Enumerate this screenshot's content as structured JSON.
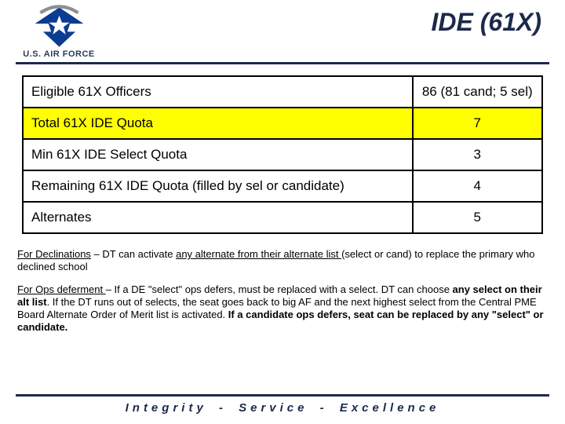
{
  "header": {
    "org_label": "U.S. AIR FORCE",
    "title": "IDE (61X)",
    "logo_colors": {
      "wing": "#0a3d91",
      "star": "#ffffff",
      "arc": "#8a8f99"
    }
  },
  "rule_color": "#1c2a4a",
  "table": {
    "rows": [
      {
        "label": "Eligible 61X Officers",
        "value": "86 (81 cand; 5 sel)",
        "highlight": false
      },
      {
        "label": "Total 61X IDE Quota",
        "value": "7",
        "highlight": true
      },
      {
        "label": "Min 61X IDE Select Quota",
        "value": "3",
        "highlight": false
      },
      {
        "label": "Remaining 61X IDE Quota (filled by sel or candidate)",
        "value": "4",
        "highlight": false
      },
      {
        "label": "Alternates",
        "value": "5",
        "highlight": false
      }
    ],
    "highlight_color": "#ffff00",
    "border_color": "#000000",
    "font_size": 17
  },
  "notes": {
    "p1": {
      "lead": "For Declinations",
      "mid1": " – DT can activate ",
      "u1": "any alternate from their alternate list ",
      "tail": "(select or cand) to replace the primary who declined school"
    },
    "p2": {
      "lead": "For Ops deferment ",
      "t1": "– If a DE \"select\" ops defers, must be replaced with a select. DT can choose ",
      "b1": "any select on their alt list",
      "t2": ". If the DT runs out of selects, the seat goes back to big AF and the next highest select from the Central PME Board Alternate Order of Merit list is activated. ",
      "b2": "If a candidate ops defers, seat can be replaced by any \"select\" or candidate."
    }
  },
  "footer": {
    "motto_words": [
      "Integrity",
      "-",
      "Service",
      "-",
      "Excellence"
    ]
  }
}
